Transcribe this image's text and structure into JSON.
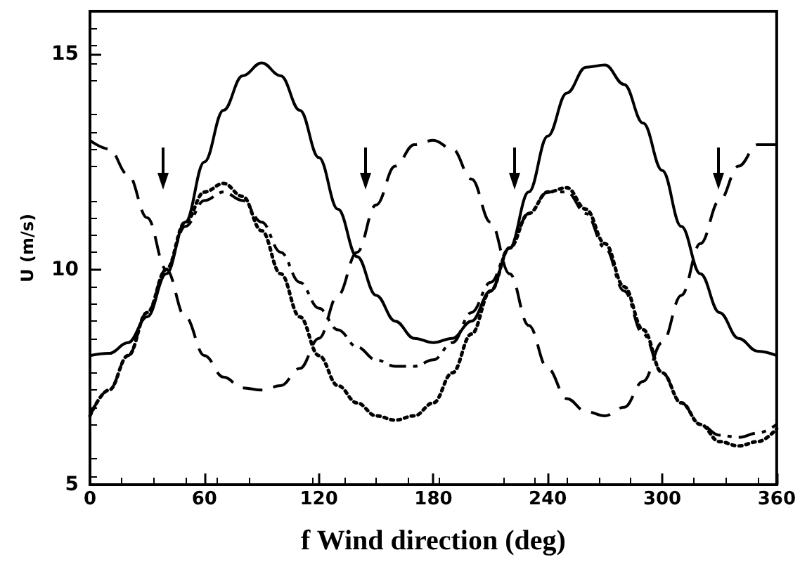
{
  "chart_data": {
    "type": "line",
    "xlabel": "f Wind direction (deg)",
    "ylabel": "U (m/s)",
    "x": [
      0,
      10,
      20,
      30,
      40,
      50,
      60,
      70,
      80,
      90,
      100,
      110,
      120,
      130,
      140,
      150,
      160,
      170,
      180,
      190,
      200,
      210,
      220,
      230,
      240,
      250,
      260,
      270,
      280,
      290,
      300,
      310,
      320,
      330,
      340,
      350,
      360
    ],
    "series": [
      {
        "color": "#000000",
        "line_style": "solid",
        "values": [
          8.0,
          8.05,
          8.3,
          8.9,
          9.9,
          11.1,
          12.5,
          13.7,
          14.5,
          14.8,
          14.5,
          13.7,
          12.6,
          11.4,
          10.3,
          9.4,
          8.8,
          8.4,
          8.3,
          8.4,
          8.8,
          9.5,
          10.5,
          11.8,
          13.1,
          14.1,
          14.7,
          14.75,
          14.3,
          13.4,
          12.3,
          11.0,
          9.9,
          9.0,
          8.4,
          8.1,
          8.0
        ]
      },
      {
        "color": "#000000",
        "line_style": "dashed",
        "values": [
          13.0,
          12.8,
          12.2,
          11.2,
          10.0,
          8.9,
          8.0,
          7.5,
          7.25,
          7.2,
          7.3,
          7.7,
          8.4,
          9.4,
          10.4,
          11.5,
          12.4,
          12.9,
          13.0,
          12.8,
          12.1,
          11.1,
          9.9,
          8.7,
          7.7,
          7.0,
          6.7,
          6.6,
          6.8,
          7.4,
          8.3,
          9.4,
          10.6,
          11.6,
          12.4,
          12.9,
          12.9
        ]
      },
      {
        "color": "#000000",
        "line_style": "dashed",
        "values": [
          6.6,
          7.2,
          8.0,
          9.0,
          10.0,
          11.0,
          11.6,
          11.8,
          11.6,
          11.1,
          10.4,
          9.7,
          9.1,
          8.6,
          8.2,
          7.9,
          7.75,
          7.75,
          7.9,
          8.3,
          9.0,
          9.7,
          10.5,
          11.3,
          11.8,
          11.8,
          11.3,
          10.5,
          9.5,
          8.5,
          7.6,
          6.9,
          6.4,
          6.15,
          6.1,
          6.2,
          6.4
        ]
      },
      {
        "color": "#000000",
        "line_style": "dotted",
        "values": [
          6.6,
          7.2,
          8.0,
          9.0,
          10.0,
          11.1,
          11.8,
          12.0,
          11.7,
          10.9,
          9.9,
          8.9,
          8.0,
          7.3,
          6.9,
          6.6,
          6.5,
          6.6,
          6.9,
          7.6,
          8.5,
          9.5,
          10.5,
          11.3,
          11.8,
          11.9,
          11.4,
          10.6,
          9.6,
          8.6,
          7.6,
          6.9,
          6.4,
          6.0,
          5.9,
          6.0,
          6.3
        ]
      }
    ],
    "xlim": [
      0,
      360
    ],
    "xticks": [
      0,
      60,
      120,
      180,
      240,
      300,
      360
    ],
    "ylim": [
      5,
      16
    ],
    "yticks": [
      5,
      10,
      15
    ],
    "grid": false,
    "marker": "none"
  }
}
